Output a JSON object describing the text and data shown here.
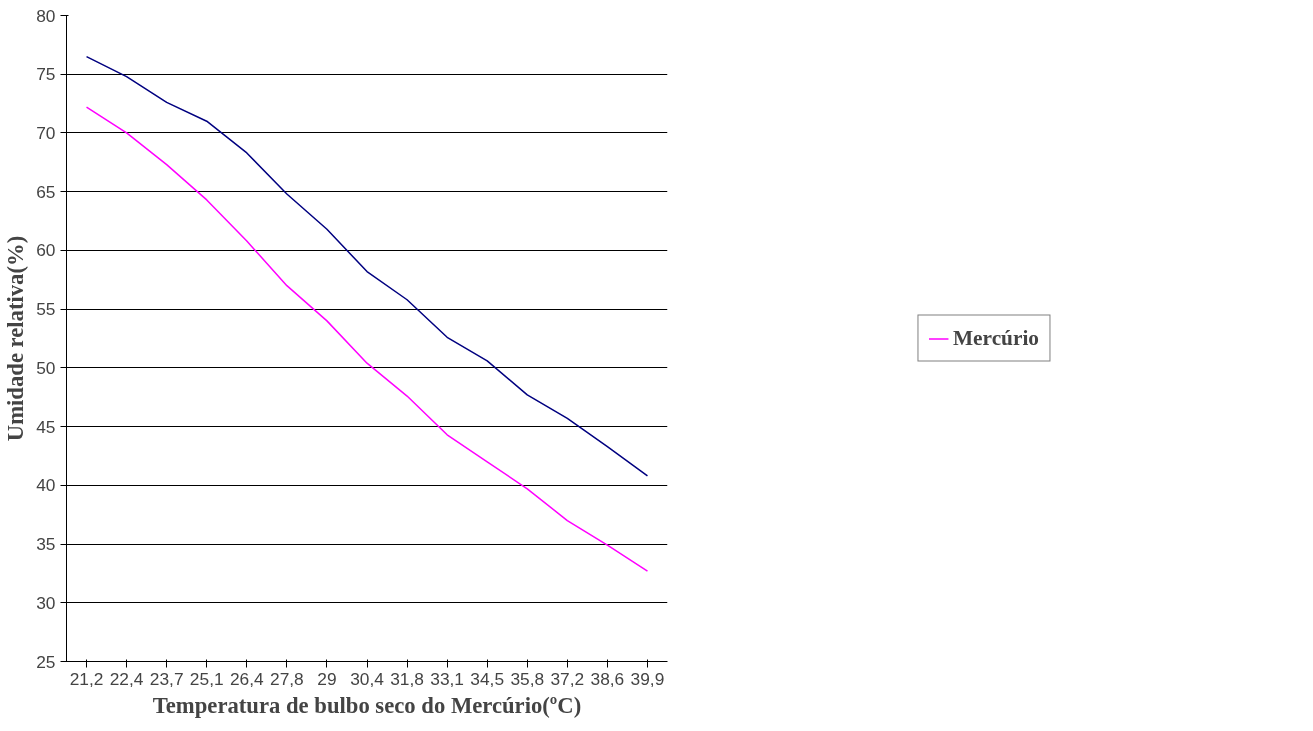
{
  "chart_data": {
    "type": "line",
    "xlabel": "Temperatura de bulbo seco do Mercúrio(ºC)",
    "ylabel": "Umidade relativa(%)",
    "categories": [
      "21,2",
      "22,4",
      "23,7",
      "25,1",
      "26,4",
      "27,8",
      "29",
      "30,4",
      "31,8",
      "33,1",
      "34,5",
      "35,8",
      "37,2",
      "38,6",
      "39,9"
    ],
    "series": [
      {
        "color": "#000080",
        "values": [
          76.5,
          74.8,
          72.6,
          71.0,
          68.3,
          64.8,
          61.8,
          58.2,
          55.8,
          52.6,
          50.6,
          47.7,
          45.7,
          43.3,
          40.8
        ]
      },
      {
        "name": "Mercúrio",
        "color": "#ff00ff",
        "values": [
          72.2,
          70.0,
          67.3,
          64.3,
          60.8,
          57.0,
          54.0,
          50.4,
          47.6,
          44.3,
          42.0,
          39.7,
          37.0,
          34.9,
          32.7
        ]
      }
    ],
    "ylim": [
      25,
      80
    ],
    "yticks": [
      25,
      30,
      35,
      40,
      45,
      50,
      55,
      60,
      65,
      70,
      75,
      80
    ],
    "grid": "y",
    "legend": "right",
    "marker": "none",
    "line_style": "solid"
  }
}
